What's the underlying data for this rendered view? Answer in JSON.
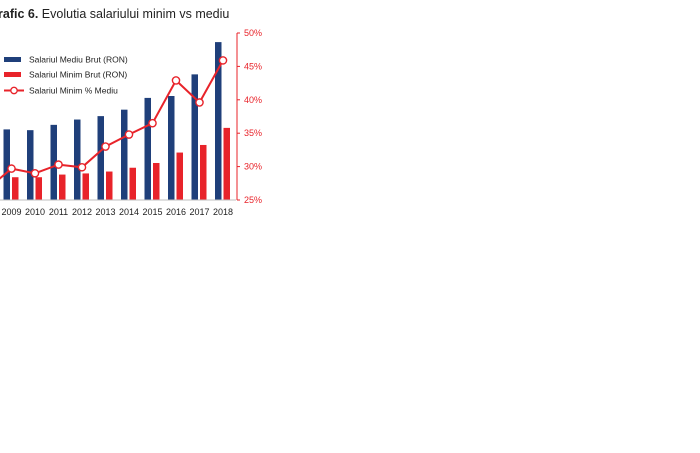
{
  "header": {
    "title_bold": "rafic 6.",
    "title_rest": "Evolutia salariului minim vs mediu"
  },
  "colors": {
    "avg": "#1f3f7a",
    "min": "#e8232a",
    "line": "#e8232a"
  },
  "chart_data": {
    "type": "bar",
    "title": "rafic 6. Evolutia salariului minim vs mediu",
    "categories": [
      "2009",
      "2010",
      "2011",
      "2012",
      "2013",
      "2014",
      "2015",
      "2016",
      "2017",
      "2018"
    ],
    "series": [
      {
        "name": "Salariul Mediu Brut (RON)",
        "type": "bar",
        "values": [
          1860,
          1840,
          1980,
          2120,
          2210,
          2380,
          2690,
          2740,
          3310,
          4160
        ]
      },
      {
        "name": "Salariul Minim Brut (RON)",
        "type": "bar",
        "values": [
          600,
          600,
          670,
          700,
          750,
          850,
          975,
          1250,
          1450,
          1900
        ]
      },
      {
        "name": "Salariul Minim % Mediu",
        "type": "line",
        "axis": "right",
        "values": [
          29.7,
          29.0,
          30.3,
          29.9,
          33.0,
          34.8,
          36.5,
          42.9,
          39.6,
          45.9
        ]
      }
    ],
    "y_right": {
      "ticks": [
        "25%",
        "30%",
        "35%",
        "40%",
        "45%",
        "50%"
      ],
      "ylim": [
        25,
        50
      ]
    },
    "legend": "top-left"
  }
}
